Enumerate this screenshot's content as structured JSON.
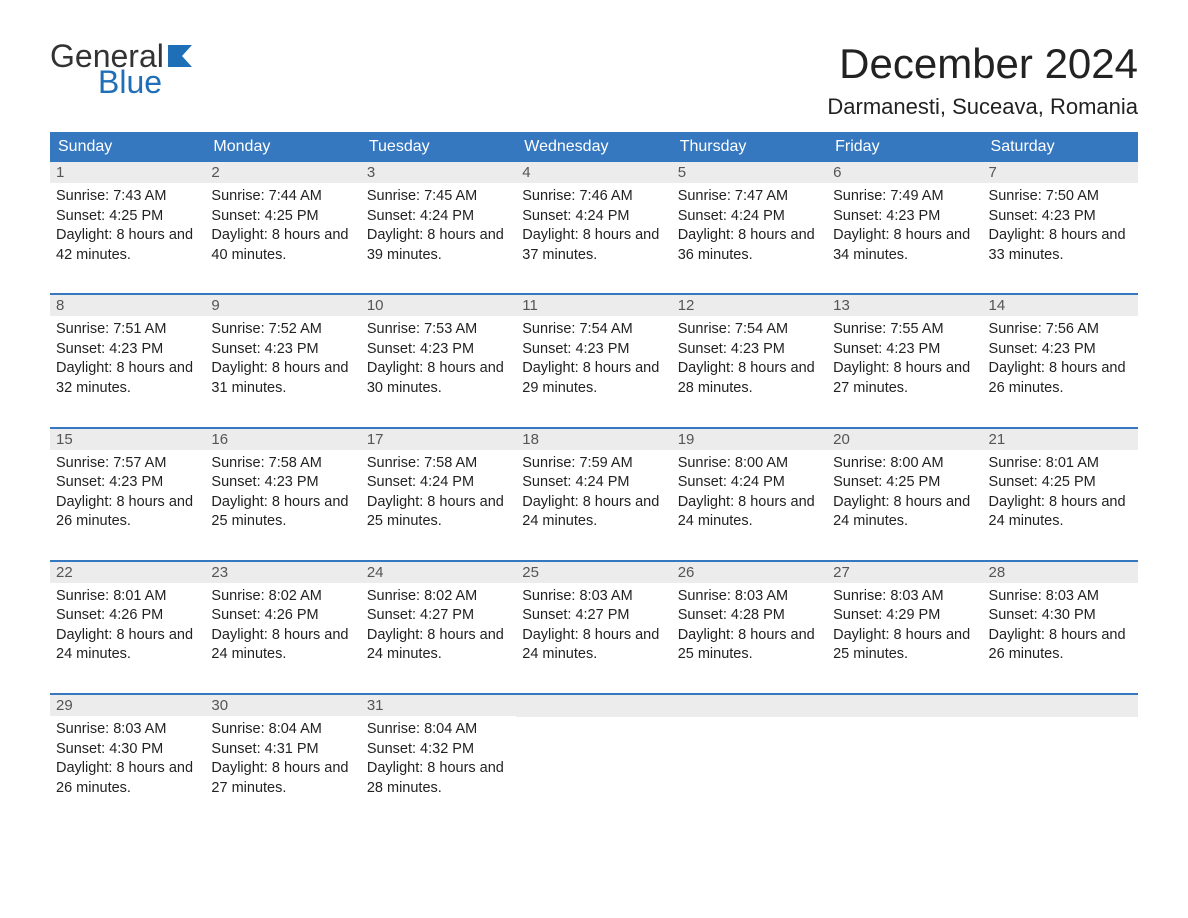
{
  "logo": {
    "text_general": "General",
    "text_blue": "Blue",
    "flag_color": "#1e6fb8"
  },
  "title": "December 2024",
  "location": "Darmanesti, Suceava, Romania",
  "colors": {
    "header_bg": "#3578c0",
    "header_text": "#ffffff",
    "daynum_bg": "#ececec",
    "daynum_text": "#555555",
    "body_text": "#222222",
    "week_border": "#3578c0",
    "background": "#ffffff"
  },
  "typography": {
    "title_fontsize": 42,
    "location_fontsize": 22,
    "weekday_fontsize": 16,
    "daynum_fontsize": 15,
    "content_fontsize": 14.5,
    "font_family": "Arial"
  },
  "weekdays": [
    "Sunday",
    "Monday",
    "Tuesday",
    "Wednesday",
    "Thursday",
    "Friday",
    "Saturday"
  ],
  "labels": {
    "sunrise": "Sunrise: ",
    "sunset": "Sunset: ",
    "daylight_prefix": "Daylight: "
  },
  "weeks": [
    [
      {
        "day": "1",
        "sunrise": "7:43 AM",
        "sunset": "4:25 PM",
        "daylight": "8 hours and 42 minutes."
      },
      {
        "day": "2",
        "sunrise": "7:44 AM",
        "sunset": "4:25 PM",
        "daylight": "8 hours and 40 minutes."
      },
      {
        "day": "3",
        "sunrise": "7:45 AM",
        "sunset": "4:24 PM",
        "daylight": "8 hours and 39 minutes."
      },
      {
        "day": "4",
        "sunrise": "7:46 AM",
        "sunset": "4:24 PM",
        "daylight": "8 hours and 37 minutes."
      },
      {
        "day": "5",
        "sunrise": "7:47 AM",
        "sunset": "4:24 PM",
        "daylight": "8 hours and 36 minutes."
      },
      {
        "day": "6",
        "sunrise": "7:49 AM",
        "sunset": "4:23 PM",
        "daylight": "8 hours and 34 minutes."
      },
      {
        "day": "7",
        "sunrise": "7:50 AM",
        "sunset": "4:23 PM",
        "daylight": "8 hours and 33 minutes."
      }
    ],
    [
      {
        "day": "8",
        "sunrise": "7:51 AM",
        "sunset": "4:23 PM",
        "daylight": "8 hours and 32 minutes."
      },
      {
        "day": "9",
        "sunrise": "7:52 AM",
        "sunset": "4:23 PM",
        "daylight": "8 hours and 31 minutes."
      },
      {
        "day": "10",
        "sunrise": "7:53 AM",
        "sunset": "4:23 PM",
        "daylight": "8 hours and 30 minutes."
      },
      {
        "day": "11",
        "sunrise": "7:54 AM",
        "sunset": "4:23 PM",
        "daylight": "8 hours and 29 minutes."
      },
      {
        "day": "12",
        "sunrise": "7:54 AM",
        "sunset": "4:23 PM",
        "daylight": "8 hours and 28 minutes."
      },
      {
        "day": "13",
        "sunrise": "7:55 AM",
        "sunset": "4:23 PM",
        "daylight": "8 hours and 27 minutes."
      },
      {
        "day": "14",
        "sunrise": "7:56 AM",
        "sunset": "4:23 PM",
        "daylight": "8 hours and 26 minutes."
      }
    ],
    [
      {
        "day": "15",
        "sunrise": "7:57 AM",
        "sunset": "4:23 PM",
        "daylight": "8 hours and 26 minutes."
      },
      {
        "day": "16",
        "sunrise": "7:58 AM",
        "sunset": "4:23 PM",
        "daylight": "8 hours and 25 minutes."
      },
      {
        "day": "17",
        "sunrise": "7:58 AM",
        "sunset": "4:24 PM",
        "daylight": "8 hours and 25 minutes."
      },
      {
        "day": "18",
        "sunrise": "7:59 AM",
        "sunset": "4:24 PM",
        "daylight": "8 hours and 24 minutes."
      },
      {
        "day": "19",
        "sunrise": "8:00 AM",
        "sunset": "4:24 PM",
        "daylight": "8 hours and 24 minutes."
      },
      {
        "day": "20",
        "sunrise": "8:00 AM",
        "sunset": "4:25 PM",
        "daylight": "8 hours and 24 minutes."
      },
      {
        "day": "21",
        "sunrise": "8:01 AM",
        "sunset": "4:25 PM",
        "daylight": "8 hours and 24 minutes."
      }
    ],
    [
      {
        "day": "22",
        "sunrise": "8:01 AM",
        "sunset": "4:26 PM",
        "daylight": "8 hours and 24 minutes."
      },
      {
        "day": "23",
        "sunrise": "8:02 AM",
        "sunset": "4:26 PM",
        "daylight": "8 hours and 24 minutes."
      },
      {
        "day": "24",
        "sunrise": "8:02 AM",
        "sunset": "4:27 PM",
        "daylight": "8 hours and 24 minutes."
      },
      {
        "day": "25",
        "sunrise": "8:03 AM",
        "sunset": "4:27 PM",
        "daylight": "8 hours and 24 minutes."
      },
      {
        "day": "26",
        "sunrise": "8:03 AM",
        "sunset": "4:28 PM",
        "daylight": "8 hours and 25 minutes."
      },
      {
        "day": "27",
        "sunrise": "8:03 AM",
        "sunset": "4:29 PM",
        "daylight": "8 hours and 25 minutes."
      },
      {
        "day": "28",
        "sunrise": "8:03 AM",
        "sunset": "4:30 PM",
        "daylight": "8 hours and 26 minutes."
      }
    ],
    [
      {
        "day": "29",
        "sunrise": "8:03 AM",
        "sunset": "4:30 PM",
        "daylight": "8 hours and 26 minutes."
      },
      {
        "day": "30",
        "sunrise": "8:04 AM",
        "sunset": "4:31 PM",
        "daylight": "8 hours and 27 minutes."
      },
      {
        "day": "31",
        "sunrise": "8:04 AM",
        "sunset": "4:32 PM",
        "daylight": "8 hours and 28 minutes."
      },
      null,
      null,
      null,
      null
    ]
  ]
}
